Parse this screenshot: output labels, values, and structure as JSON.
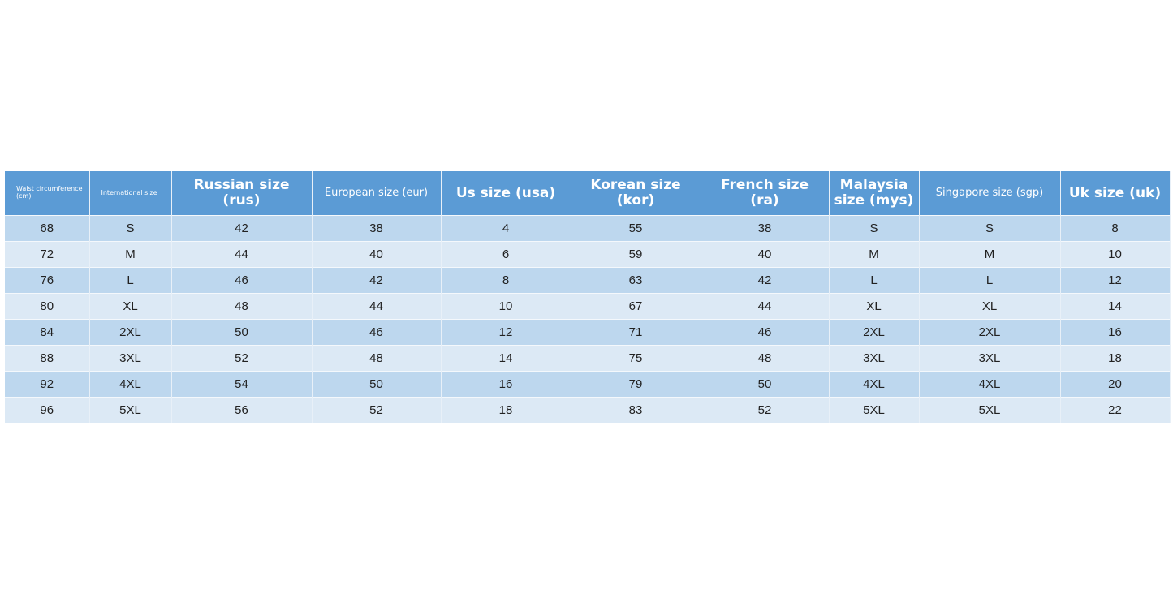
{
  "table": {
    "header": [
      "Waist circumference (cm)",
      "International size",
      "Russian size (rus)",
      "European size (eur)",
      "Us size (usa)",
      "Korean size (kor)",
      "French size (ra)",
      "Malaysia size (mys)",
      "Singapore size (sgp)",
      "Uk size (uk)"
    ],
    "rows": [
      [
        "68",
        "S",
        "42",
        "38",
        "4",
        "55",
        "38",
        "S",
        "S",
        "8"
      ],
      [
        "72",
        "M",
        "44",
        "40",
        "6",
        "59",
        "40",
        "M",
        "M",
        "10"
      ],
      [
        "76",
        "L",
        "46",
        "42",
        "8",
        "63",
        "42",
        "L",
        "L",
        "12"
      ],
      [
        "80",
        "XL",
        "48",
        "44",
        "10",
        "67",
        "44",
        "XL",
        "XL",
        "14"
      ],
      [
        "84",
        "2XL",
        "50",
        "46",
        "12",
        "71",
        "46",
        "2XL",
        "2XL",
        "16"
      ],
      [
        "88",
        "3XL",
        "52",
        "48",
        "14",
        "75",
        "48",
        "3XL",
        "3XL",
        "18"
      ],
      [
        "92",
        "4XL",
        "54",
        "50",
        "16",
        "79",
        "50",
        "4XL",
        "4XL",
        "20"
      ],
      [
        "96",
        "5XL",
        "56",
        "52",
        "18",
        "83",
        "52",
        "5XL",
        "5XL",
        "22"
      ]
    ]
  }
}
